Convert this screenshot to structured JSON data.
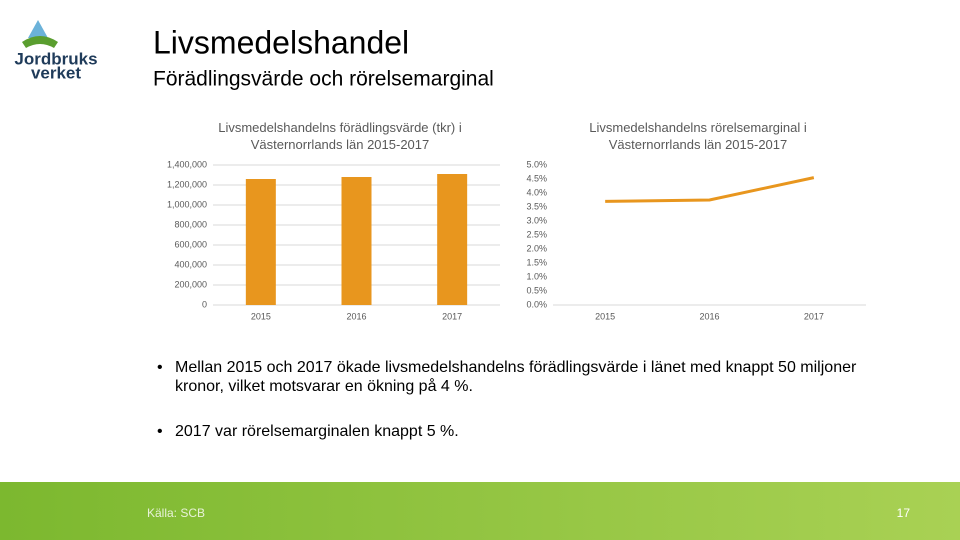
{
  "header": {
    "logo": [
      "Jordbruks",
      "verket"
    ],
    "title": "Livsmedelshandel",
    "subtitle": "Förädlingsvärde och rörelsemarginal"
  },
  "chart_data": [
    {
      "type": "bar",
      "title": "Livsmedelshandelns förädlingsvärde (tkr) i Västernorrlands län 2015-2017",
      "categories": [
        "2015",
        "2016",
        "2017"
      ],
      "values": [
        1260000,
        1280000,
        1310000
      ],
      "color": "#e8961e",
      "ylim": [
        0,
        1400000
      ],
      "yticks": [
        0,
        {
          "value": 200000,
          "label": "200,000"
        },
        {
          "value": 400000,
          "label": "400,000"
        },
        {
          "value": 600000,
          "label": "600,000"
        },
        {
          "value": 800000,
          "label": "800,000"
        },
        {
          "value": 1000000,
          "label": "1,000,000"
        },
        {
          "value": 1200000,
          "label": "1,200,000"
        },
        {
          "value": 1400000,
          "label": "1,400,000"
        }
      ],
      "grid": true
    },
    {
      "type": "line",
      "title": "Livsmedelshandelns rörelsemarginal i Västernorrlands län 2015-2017",
      "categories": [
        "2015",
        "2016",
        "2017"
      ],
      "values": [
        3.7,
        3.75,
        4.55
      ],
      "color": "#e8961e",
      "ylim": [
        0,
        5
      ],
      "yticks": [
        {
          "value": 0,
          "label": "0.0%"
        },
        {
          "value": 0.5,
          "label": "0.5%"
        },
        {
          "value": 1,
          "label": "1.0%"
        },
        {
          "value": 1.5,
          "label": "1.5%"
        },
        {
          "value": 2,
          "label": "2.0%"
        },
        {
          "value": 2.5,
          "label": "2.5%"
        },
        {
          "value": 3,
          "label": "3.0%"
        },
        {
          "value": 3.5,
          "label": "3.5%"
        },
        {
          "value": 4,
          "label": "4.0%"
        },
        {
          "value": 4.5,
          "label": "4.5%"
        },
        {
          "value": 5,
          "label": "5.0%"
        }
      ],
      "grid": false
    }
  ],
  "bullets": [
    "Mellan 2015 och 2017 ökade livsmedelshandelns förädlingsvärde i länet med knappt 50 miljoner kronor, vilket motsvarar en ökning på 4 %.",
    "2017 var rörelsemarginalen knappt 5 %."
  ],
  "footer": {
    "source": "Källa: SCB",
    "page": "17"
  }
}
